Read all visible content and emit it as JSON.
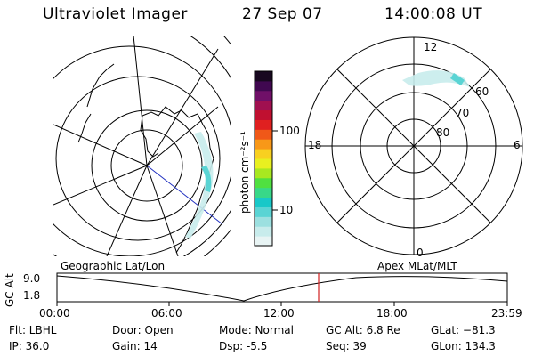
{
  "header": {
    "instrument": "Ultraviolet Imager",
    "date": "27 Sep 07",
    "time": "14:00:08 UT"
  },
  "colorbar": {
    "unit_label": "photon cm⁻²s⁻¹",
    "ticks": [
      "100",
      "10"
    ],
    "colors": [
      "#e8f4f4",
      "#c8ecec",
      "#9ce0e0",
      "#5ad4d4",
      "#18c8c8",
      "#38d888",
      "#50e040",
      "#a8e820",
      "#e8f020",
      "#f8d020",
      "#f89818",
      "#f05818",
      "#e02020",
      "#c01030",
      "#a01050",
      "#701068",
      "#400850",
      "#180820"
    ]
  },
  "geo_panel": {
    "label": "Geographic Lat/Lon"
  },
  "apex_panel": {
    "label": "Apex  MLat/MLT",
    "mlt_labels": {
      "top": "12",
      "left": "18",
      "right": "6",
      "bottom": "0"
    },
    "lat_labels": [
      "60",
      "70",
      "80"
    ]
  },
  "timeline": {
    "y_axis_label": "GC Alt",
    "y_ticks": [
      "9.0",
      "1.8"
    ],
    "x_ticks": [
      "00:00",
      "06:00",
      "12:00",
      "18:00",
      "23:59"
    ],
    "marker_time": "14:00"
  },
  "info": {
    "flt": "Flt: LBHL",
    "ip": "IP: 36.0",
    "door": "Door: Open",
    "gain": "Gain: 14",
    "mode": "Mode: Normal",
    "dsp": "Dsp:    -5.5",
    "gc_alt": "GC Alt: 6.8 Re",
    "seq": "Seq: 39",
    "glat": "GLat: −81.3",
    "glon": "GLon: 134.3"
  }
}
